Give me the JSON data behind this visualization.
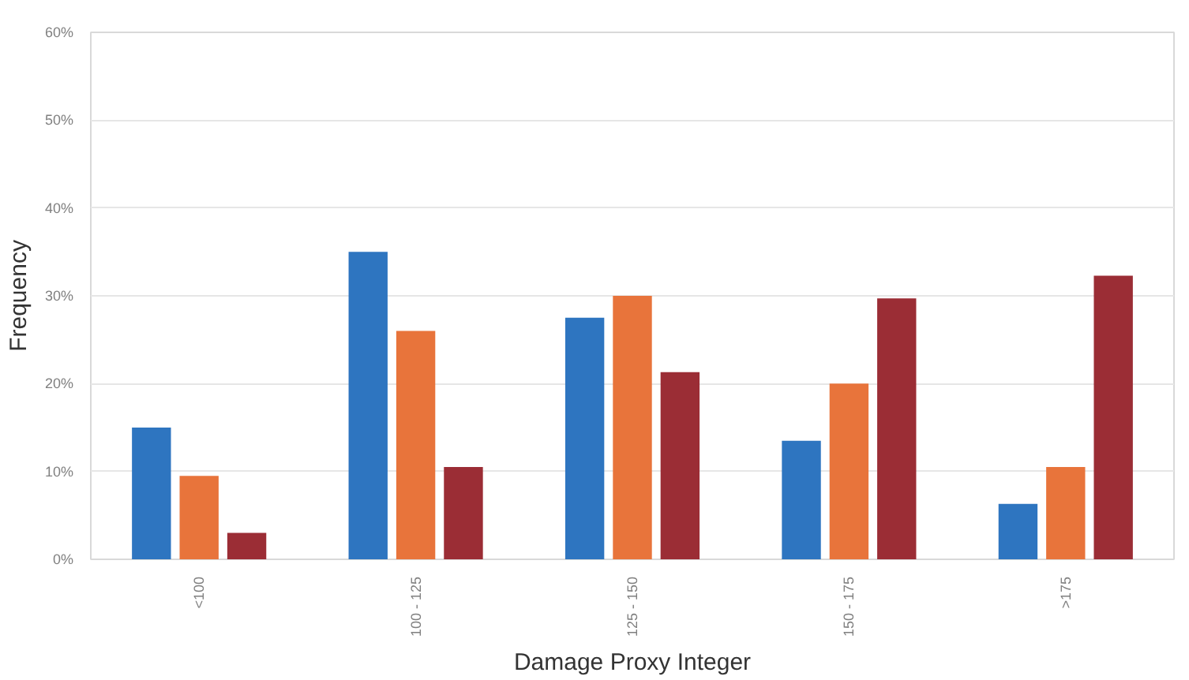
{
  "chart_data": {
    "type": "bar",
    "xlabel": "Damage Proxy Integer",
    "ylabel": "Frequency",
    "categories": [
      "<100",
      "100 - 125",
      "125 - 150",
      "150 - 175",
      ">175"
    ],
    "series": [
      {
        "color": "#2e75c0",
        "values": [
          15,
          35,
          27.5,
          13.5,
          6.3
        ]
      },
      {
        "color": "#e8743b",
        "values": [
          9.5,
          26,
          30,
          20,
          10.5
        ]
      },
      {
        "color": "#9b2d35",
        "values": [
          3,
          10.5,
          21.3,
          29.7,
          32.3
        ]
      }
    ],
    "ylim": [
      0,
      60
    ],
    "yticks": [
      {
        "value": 0,
        "label": "0%"
      },
      {
        "value": 10,
        "label": "10%"
      },
      {
        "value": 20,
        "label": "20%"
      },
      {
        "value": 30,
        "label": "30%"
      },
      {
        "value": 40,
        "label": "40%"
      },
      {
        "value": 50,
        "label": "50%"
      },
      {
        "value": 60,
        "label": "60%"
      }
    ],
    "grid": "y"
  }
}
